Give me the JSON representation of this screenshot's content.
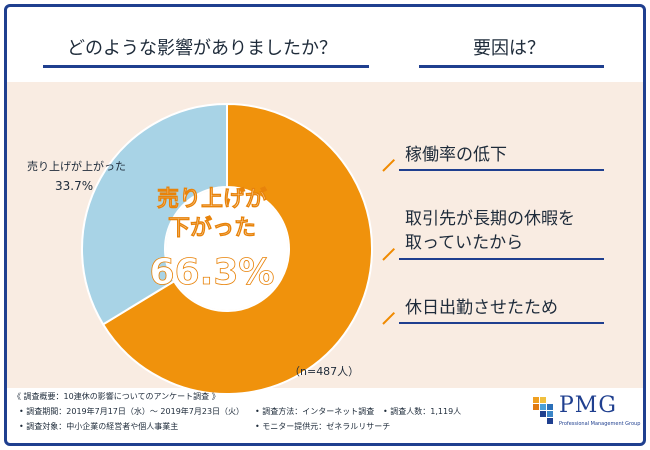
{
  "header": {
    "left_question": "どのような影響がありましたか？",
    "right_question": "要因は？"
  },
  "chart_data": {
    "type": "pie",
    "style": "donut",
    "slices": [
      {
        "label": "売り上げが下がった",
        "value": 66.3,
        "value_text": "66.3%",
        "color": "#f0920c"
      },
      {
        "label": "売り上げが上がった",
        "value": 33.7,
        "value_text": "33.7%",
        "color": "#a8d3e6"
      }
    ],
    "center_label_line1": "売り上げが",
    "center_label_line2": "下がった",
    "center_value": "66.3%",
    "outer_label": "売り上げが上がった",
    "outer_value": "33.7%",
    "sample_size": "（n=487人）"
  },
  "reasons": [
    {
      "lines": [
        "稼働率の低下"
      ]
    },
    {
      "lines": [
        "取引先が長期の休暇を",
        "取っていたから"
      ]
    },
    {
      "lines": [
        "休日出勤させたため"
      ]
    }
  ],
  "footer": {
    "title": "《 調査概要：10連休の影響についてのアンケート調査 》",
    "period": "• 調査期間：2019年7月17日（水）～ 2019年7月23日（火）",
    "method": "• 調査方法：インターネット調査",
    "count": "• 調査人数：1,119人",
    "target": "• 調査対象：中小企業の経営者や個人事業主",
    "provider": "• モニター提供元：ゼネラルリサーチ"
  },
  "logo": {
    "name": "PMG",
    "tagline": "Professional Management Group"
  },
  "colors": {
    "primary_navy": "#1f3f8f",
    "accent_orange": "#f08a00",
    "band_bg": "#f9ece2"
  }
}
